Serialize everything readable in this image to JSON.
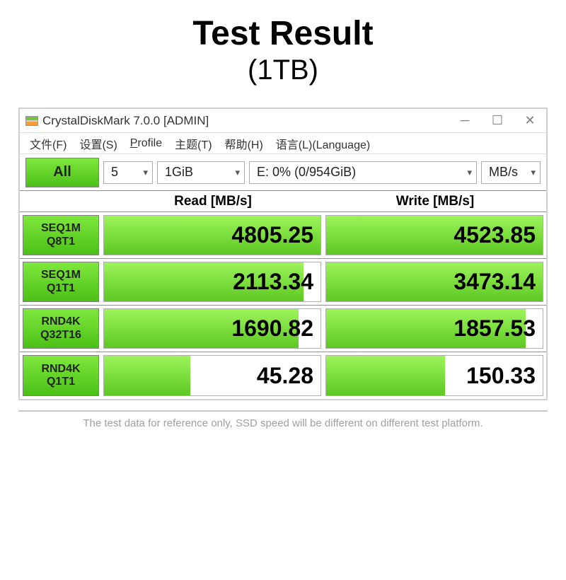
{
  "header": {
    "title": "Test Result",
    "subtitle": "(1TB)"
  },
  "window": {
    "title": "CrystalDiskMark 7.0.0 [ADMIN]",
    "menus": {
      "file": "文件(F)",
      "settings": "设置(S)",
      "profile": "Profile",
      "theme": "主题(T)",
      "help": "帮助(H)",
      "language": "语言(L)(Language)"
    },
    "controls": {
      "all_label": "All",
      "runs": "5",
      "size": "1GiB",
      "drive": "E: 0% (0/954GiB)",
      "unit": "MB/s"
    },
    "columns": {
      "read": "Read [MB/s]",
      "write": "Write [MB/s]"
    },
    "rows": [
      {
        "label1": "SEQ1M",
        "label2": "Q8T1",
        "read": "4805.25",
        "read_fill": 100,
        "write": "4523.85",
        "write_fill": 100
      },
      {
        "label1": "SEQ1M",
        "label2": "Q1T1",
        "read": "2113.34",
        "read_fill": 92,
        "write": "3473.14",
        "write_fill": 100
      },
      {
        "label1": "RND4K",
        "label2": "Q32T16",
        "read": "1690.82",
        "read_fill": 90,
        "write": "1857.53",
        "write_fill": 92
      },
      {
        "label1": "RND4K",
        "label2": "Q1T1",
        "read": "45.28",
        "read_fill": 40,
        "write": "150.33",
        "write_fill": 55
      }
    ]
  },
  "footer": "The test data for reference only, SSD speed will be different on different test platform.",
  "style": {
    "green_gradient_start": "#7ee83c",
    "green_gradient_end": "#4cc017",
    "border_color": "#909090",
    "text_color": "#000000",
    "footer_color": "#a0a0a0"
  }
}
